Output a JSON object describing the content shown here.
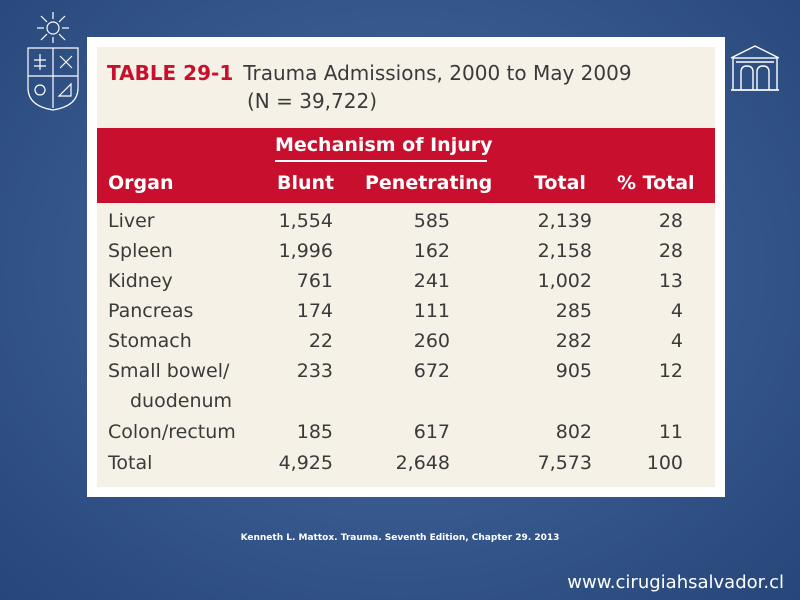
{
  "slide": {
    "caption": "Kenneth L. Mattox. Trauma. Seventh Edition, Chapter 29. 2013",
    "footer_url": "www.cirugiahsalvador.cl",
    "background_color": "#35578b",
    "logo_left_icon": "university-crest-icon",
    "logo_right_icon": "hospital-building-icon"
  },
  "table": {
    "tag": "TABLE 29-1",
    "title": "Trauma Admissions, 2000 to May 2009",
    "subtitle": "(N = 39,722)",
    "accent_color": "#c8102e",
    "group_header": "Mechanism of Injury",
    "columns": {
      "organ": "Organ",
      "blunt": "Blunt",
      "penetrating": "Penetrating",
      "total": "Total",
      "pct_total": "% Total"
    },
    "rows": [
      {
        "organ": "Liver",
        "blunt": "1,554",
        "penetrating": "585",
        "total": "2,139",
        "pct": "28"
      },
      {
        "organ": "Spleen",
        "blunt": "1,996",
        "penetrating": "162",
        "total": "2,158",
        "pct": "28"
      },
      {
        "organ": "Kidney",
        "blunt": "761",
        "penetrating": "241",
        "total": "1,002",
        "pct": "13"
      },
      {
        "organ": "Pancreas",
        "blunt": "174",
        "penetrating": "111",
        "total": "285",
        "pct": "4"
      },
      {
        "organ": "Stomach",
        "blunt": "22",
        "penetrating": "260",
        "total": "282",
        "pct": "4"
      },
      {
        "organ": "Small bowel/",
        "organ_line2": "duodenum",
        "blunt": "233",
        "penetrating": "672",
        "total": "905",
        "pct": "12"
      },
      {
        "organ": "Colon/rectum",
        "blunt": "185",
        "penetrating": "617",
        "total": "802",
        "pct": "11"
      },
      {
        "organ": "Total",
        "blunt": "4,925",
        "penetrating": "2,648",
        "total": "7,573",
        "pct": "100"
      }
    ]
  }
}
